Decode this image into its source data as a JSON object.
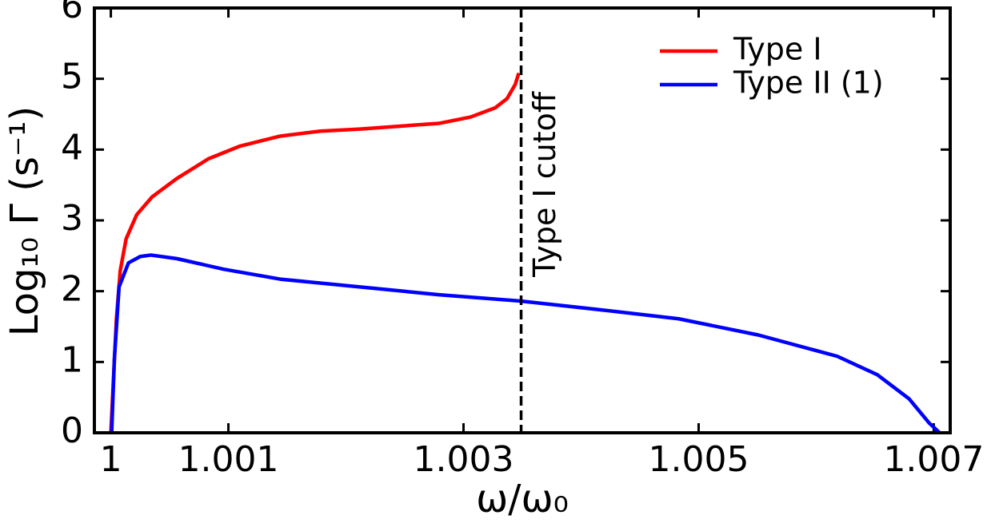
{
  "chart_data": {
    "type": "line",
    "xlabel": "ω/ω₀",
    "ylabel": "Log₁₀ Γ (s⁻¹)",
    "xlim": [
      0.99986,
      1.00714
    ],
    "ylim": [
      0,
      6
    ],
    "xticks": [
      1,
      1.001,
      1.003,
      1.005,
      1.007
    ],
    "yticks": [
      0,
      1,
      2,
      3,
      4,
      5,
      6
    ],
    "legend": "upper right",
    "vline": {
      "x": 1.00349,
      "label": "Type I cutoff",
      "color": "#000000"
    },
    "series": [
      {
        "name": "Type I",
        "color": "#ff0000",
        "x": [
          1.0,
          1.0000475,
          1.00008,
          1.00013,
          1.00022,
          1.00035,
          1.00056,
          1.00083,
          1.0011,
          1.00144,
          1.00178,
          1.00212,
          1.00245,
          1.00279,
          1.00306,
          1.00327,
          1.00337,
          1.00344,
          1.00347
        ],
        "values": [
          0,
          1.61,
          2.29,
          2.74,
          3.08,
          3.33,
          3.59,
          3.87,
          4.05,
          4.19,
          4.26,
          4.29,
          4.33,
          4.37,
          4.46,
          4.59,
          4.72,
          4.92,
          5.08
        ]
      },
      {
        "name": "Type II (1)",
        "color": "#0000ff",
        "x": [
          1.000007,
          1.00003,
          1.00007,
          1.00015,
          1.00025,
          1.00034,
          1.00056,
          1.00096,
          1.00144,
          1.00212,
          1.00279,
          1.00349,
          1.00415,
          1.00483,
          1.00551,
          1.00618,
          1.00652,
          1.00679,
          1.00696,
          1.00705
        ],
        "values": [
          0,
          1.04,
          2.06,
          2.4,
          2.49,
          2.51,
          2.46,
          2.31,
          2.17,
          2.06,
          1.95,
          1.86,
          1.74,
          1.61,
          1.38,
          1.08,
          0.82,
          0.48,
          0.14,
          0
        ]
      }
    ]
  }
}
